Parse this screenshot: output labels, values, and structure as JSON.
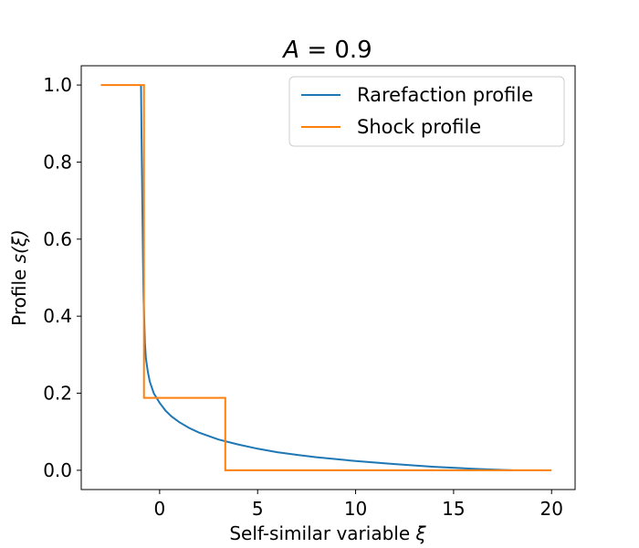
{
  "chart_data": {
    "type": "line",
    "title_prefix": "A",
    "title_eq": " = 0.9",
    "xlabel": "Self-similar variable ",
    "xlabel_sym": "ξ",
    "ylabel": "Profile ",
    "ylabel_sym": "s(ξ)",
    "xlim": [
      -4.0,
      21.2
    ],
    "ylim": [
      -0.05,
      1.05
    ],
    "xticks": [
      0,
      5,
      10,
      15,
      20
    ],
    "xtick_labels": [
      "0",
      "5",
      "10",
      "15",
      "20"
    ],
    "yticks": [
      0.0,
      0.2,
      0.4,
      0.6,
      0.8,
      1.0
    ],
    "ytick_labels": [
      "0.0",
      "0.2",
      "0.4",
      "0.6",
      "0.8",
      "1.0"
    ],
    "legend_position": "top-right",
    "series": [
      {
        "name": "Rarefaction profile",
        "color": "#1f77b4",
        "x": [
          -0.95,
          -0.92,
          -0.88,
          -0.85,
          -0.82,
          -0.78,
          -0.75,
          -0.7,
          -0.6,
          -0.5,
          -0.3,
          0.0,
          0.3,
          0.6,
          1.0,
          1.5,
          2.0,
          3.0,
          4.0,
          5.0,
          6.0,
          7.0,
          8.0,
          10.0,
          12.0,
          14.0,
          16.0,
          17.0,
          18.0
        ],
        "y": [
          1.0,
          0.85,
          0.68,
          0.55,
          0.45,
          0.38,
          0.33,
          0.29,
          0.255,
          0.23,
          0.2,
          0.175,
          0.155,
          0.14,
          0.125,
          0.11,
          0.098,
          0.08,
          0.067,
          0.056,
          0.047,
          0.04,
          0.034,
          0.024,
          0.016,
          0.009,
          0.004,
          0.002,
          0.0
        ]
      },
      {
        "name": "Shock profile",
        "color": "#ff7f0e",
        "x": [
          -3.0,
          -0.8,
          -0.8,
          3.35,
          3.35,
          20.0
        ],
        "y": [
          1.0,
          1.0,
          0.188,
          0.188,
          0.0,
          0.0
        ]
      }
    ]
  }
}
